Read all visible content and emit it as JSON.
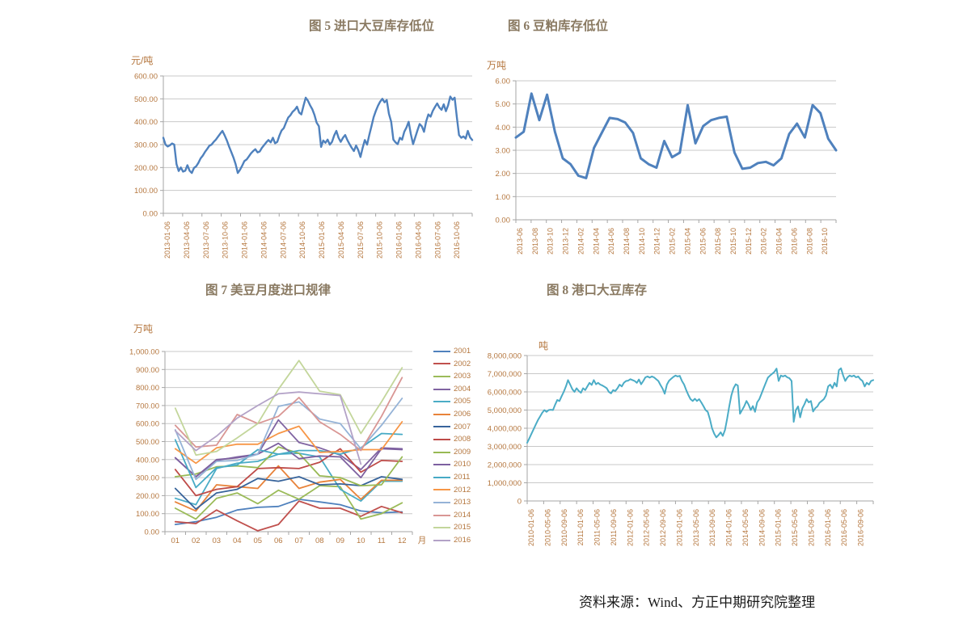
{
  "figures": {
    "fig5_title": "图 5 进口大豆库存低位",
    "fig6_title": "图 6 豆粕库存低位",
    "fig7_title": "图 7 美豆月度进口规律",
    "fig8_title": "图 8 港口大豆库存",
    "source_note": "资料来源：Wind、方正中期研究院整理"
  },
  "colors": {
    "tick_text": "#b5773f",
    "title_text": "#8a7a62",
    "gridline": "#c8c8c8",
    "axis_line": "#a6a6a6",
    "fig5_line": "#4F81BD",
    "fig6_line": "#4F81BD",
    "fig8_line": "#4BACC6"
  },
  "chart_data": [
    {
      "id": "fig5",
      "type": "line",
      "title": "图 5 进口大豆库存低位",
      "unit": "元/吨",
      "ylim": [
        0,
        600
      ],
      "ytick_step": 100,
      "y_decimals": 2,
      "grid": true,
      "legend": "none",
      "x_tick_labels": [
        "2013-01-06",
        "2013-04-06",
        "2013-07-06",
        "2013-10-06",
        "2014-01-06",
        "2014-04-06",
        "2014-07-06",
        "2014-10-06",
        "2015-01-06",
        "2015-04-06",
        "2015-07-06",
        "2015-10-06",
        "2016-01-06",
        "2016-04-06",
        "2016-07-06",
        "2016-10-06"
      ],
      "series": [
        {
          "name": "",
          "color": "#4F81BD",
          "values": [
            330,
            300,
            292,
            297,
            305,
            300,
            215,
            185,
            200,
            182,
            186,
            210,
            186,
            176,
            198,
            205,
            220,
            240,
            252,
            268,
            281,
            295,
            300,
            312,
            322,
            335,
            348,
            360,
            340,
            318,
            292,
            268,
            244,
            215,
            176,
            190,
            208,
            228,
            235,
            248,
            262,
            272,
            280,
            266,
            270,
            286,
            298,
            310,
            320,
            310,
            330,
            306,
            312,
            340,
            362,
            372,
            396,
            418,
            428,
            443,
            452,
            466,
            440,
            432,
            470,
            505,
            492,
            472,
            455,
            430,
            396,
            380,
            290,
            318,
            308,
            322,
            300,
            312,
            340,
            360,
            330,
            312,
            330,
            342,
            320,
            302,
            286,
            272,
            296,
            276,
            246,
            286,
            320,
            300,
            342,
            380,
            420,
            447,
            470,
            488,
            500,
            485,
            495,
            435,
            400,
            322,
            310,
            302,
            330,
            322,
            356,
            375,
            400,
            346,
            302,
            332,
            362,
            390,
            380,
            356,
            402,
            432,
            422,
            447,
            464,
            480,
            462,
            452,
            476,
            446,
            472,
            510,
            496,
            505,
            420,
            342,
            330,
            336,
            326,
            360,
            332,
            320
          ]
        }
      ]
    },
    {
      "id": "fig6",
      "type": "line",
      "title": "图 6 豆粕库存低位",
      "unit": "万吨",
      "ylim": [
        0,
        6
      ],
      "ytick_step": 1,
      "y_decimals": 2,
      "grid": true,
      "legend": "none",
      "x_tick_labels": [
        "2013-06",
        "2013-08",
        "2013-10",
        "2013-12",
        "2014-02",
        "2014-04",
        "2014-06",
        "2014-08",
        "2014-10",
        "2014-12",
        "2015-02",
        "2015-04",
        "2015-06",
        "2015-08",
        "2015-10",
        "2015-12",
        "2016-02",
        "2016-04",
        "2016-06",
        "2016-08",
        "2016-10"
      ],
      "series": [
        {
          "name": "",
          "color": "#4F81BD",
          "values": [
            3.55,
            3.8,
            5.45,
            4.3,
            5.4,
            3.8,
            2.65,
            2.4,
            1.9,
            1.8,
            3.1,
            3.75,
            4.4,
            4.35,
            4.2,
            3.75,
            2.65,
            2.4,
            2.25,
            3.4,
            2.7,
            2.9,
            4.95,
            3.3,
            4.05,
            4.3,
            4.4,
            4.45,
            2.9,
            2.2,
            2.25,
            2.45,
            2.5,
            2.35,
            2.65,
            3.7,
            4.15,
            3.55,
            4.95,
            4.6,
            3.5,
            3.0
          ]
        }
      ]
    },
    {
      "id": "fig7",
      "type": "line",
      "title": "图 7 美豆月度进口规律",
      "unit": "万吨",
      "ylim": [
        0,
        1000
      ],
      "ytick_step": 100,
      "y_decimals": 2,
      "grid": true,
      "legend": "right",
      "x_tick_labels": [
        "01",
        "02",
        "03",
        "04",
        "05",
        "06",
        "07",
        "08",
        "09",
        "10",
        "11",
        "12"
      ],
      "x_axis_suffix": "月",
      "series": [
        {
          "name": "2001",
          "color": "#4F81BD",
          "values": [
            40,
            55,
            80,
            120,
            135,
            140,
            180,
            165,
            150,
            115,
            105,
            110
          ]
        },
        {
          "name": "2002",
          "color": "#C0504D",
          "values": [
            55,
            45,
            120,
            60,
            5,
            40,
            170,
            130,
            130,
            85,
            140,
            105
          ]
        },
        {
          "name": "2003",
          "color": "#9BBB59",
          "values": [
            130,
            70,
            185,
            215,
            155,
            230,
            180,
            255,
            250,
            70,
            100,
            160
          ]
        },
        {
          "name": "2004",
          "color": "#8064A2",
          "values": [
            410,
            305,
            400,
            410,
            430,
            620,
            495,
            465,
            425,
            345,
            465,
            460
          ]
        },
        {
          "name": "2005",
          "color": "#4BACC6",
          "values": [
            185,
            150,
            350,
            380,
            390,
            430,
            435,
            415,
            235,
            170,
            280,
            280
          ]
        },
        {
          "name": "2006",
          "color": "#E8833A",
          "values": [
            165,
            115,
            260,
            250,
            240,
            365,
            240,
            275,
            290,
            180,
            285,
            285
          ]
        },
        {
          "name": "2007",
          "color": "#38649B",
          "values": [
            240,
            125,
            215,
            235,
            295,
            280,
            305,
            260,
            265,
            255,
            305,
            290
          ]
        },
        {
          "name": "2008",
          "color": "#BE4B48",
          "values": [
            345,
            200,
            235,
            250,
            350,
            355,
            350,
            385,
            460,
            330,
            395,
            390
          ]
        },
        {
          "name": "2009",
          "color": "#98B954",
          "values": [
            305,
            320,
            360,
            365,
            355,
            470,
            435,
            310,
            300,
            255,
            260,
            415
          ]
        },
        {
          "name": "2010",
          "color": "#7D60A0",
          "values": [
            410,
            305,
            395,
            415,
            430,
            490,
            405,
            420,
            415,
            300,
            460,
            455
          ]
        },
        {
          "name": "2011",
          "color": "#46AAC5",
          "values": [
            510,
            245,
            355,
            370,
            455,
            430,
            450,
            450,
            430,
            465,
            545,
            540
          ]
        },
        {
          "name": "2012",
          "color": "#F79646",
          "values": [
            460,
            380,
            465,
            485,
            485,
            545,
            585,
            440,
            445,
            455,
            455,
            610
          ]
        },
        {
          "name": "2013",
          "color": "#95B3D7",
          "values": [
            565,
            290,
            390,
            395,
            430,
            695,
            720,
            625,
            600,
            460,
            590,
            740
          ]
        },
        {
          "name": "2014",
          "color": "#D99694",
          "values": [
            590,
            470,
            480,
            650,
            600,
            640,
            745,
            610,
            540,
            450,
            640,
            855
          ]
        },
        {
          "name": "2015",
          "color": "#C3D69B",
          "values": [
            685,
            425,
            445,
            520,
            600,
            790,
            950,
            780,
            760,
            545,
            720,
            910
          ]
        },
        {
          "name": "2016",
          "color": "#B3A2C7",
          "values": [
            560,
            450,
            530,
            630,
            700,
            765,
            775,
            765,
            755,
            375
          ]
        }
      ]
    },
    {
      "id": "fig8",
      "type": "line",
      "title": "图 8 港口大豆库存",
      "unit": "吨",
      "ylim": [
        0,
        8000000
      ],
      "ytick_step": 1000000,
      "y_decimals": 0,
      "grid": true,
      "legend": "none",
      "x_tick_labels": [
        "2010-01-06",
        "2010-05-06",
        "2010-09-06",
        "2011-01-06",
        "2011-05-06",
        "2011-09-06",
        "2012-01-06",
        "2012-05-06",
        "2012-09-06",
        "2013-01-06",
        "2013-05-06",
        "2013-09-06",
        "2014-01-06",
        "2014-05-06",
        "2014-09-06",
        "2015-01-06",
        "2015-05-06",
        "2015-09-06",
        "2016-01-06",
        "2016-05-06",
        "2016-09-06"
      ],
      "series": [
        {
          "name": "",
          "color": "#4BACC6",
          "values": [
            3200000,
            3450000,
            3700000,
            3950000,
            4200000,
            4450000,
            4650000,
            4850000,
            5000000,
            4900000,
            5000000,
            5020000,
            5000000,
            5300000,
            5550000,
            5500000,
            5750000,
            6000000,
            6300000,
            6650000,
            6400000,
            6150000,
            6000000,
            6200000,
            6050000,
            5950000,
            6200000,
            6100000,
            6300000,
            6500000,
            6380000,
            6650000,
            6420000,
            6500000,
            6400000,
            6350000,
            6280000,
            6200000,
            6000000,
            5920000,
            6100000,
            6050000,
            6200000,
            6400000,
            6300000,
            6500000,
            6600000,
            6620000,
            6700000,
            6650000,
            6600000,
            6500000,
            6680000,
            6420000,
            6600000,
            6800000,
            6850000,
            6780000,
            6850000,
            6800000,
            6700000,
            6600000,
            6380000,
            6180000,
            5900000,
            6400000,
            6620000,
            6720000,
            6820000,
            6900000,
            6850000,
            6880000,
            6600000,
            6400000,
            6100000,
            5820000,
            5600000,
            5500000,
            5620000,
            5500000,
            5600000,
            5420000,
            5220000,
            5000000,
            4900000,
            4500000,
            4000000,
            3700000,
            3500000,
            3620000,
            3780000,
            3580000,
            3900000,
            4500000,
            5200000,
            5800000,
            6200000,
            6420000,
            6350000,
            4800000,
            5000000,
            5220000,
            5500000,
            5300000,
            5000000,
            5220000,
            4900000,
            5420000,
            5600000,
            5900000,
            6200000,
            6500000,
            6780000,
            6900000,
            7000000,
            7100000,
            7280000,
            6600000,
            6900000,
            6850000,
            6900000,
            6800000,
            6750000,
            6600000,
            4350000,
            5000000,
            5200000,
            4600000,
            5100000,
            5320000,
            5600000,
            5420000,
            5500000,
            4920000,
            5100000,
            5200000,
            5400000,
            5500000,
            5600000,
            5800000,
            6300000,
            6400000,
            6200000,
            6500000,
            6300000,
            7200000,
            7300000,
            6900000,
            6600000,
            6800000,
            6900000,
            6850000,
            6900000,
            6800000,
            6850000,
            6700000,
            6600000,
            6300000,
            6500000,
            6400000,
            6600000,
            6650000
          ]
        }
      ]
    }
  ]
}
